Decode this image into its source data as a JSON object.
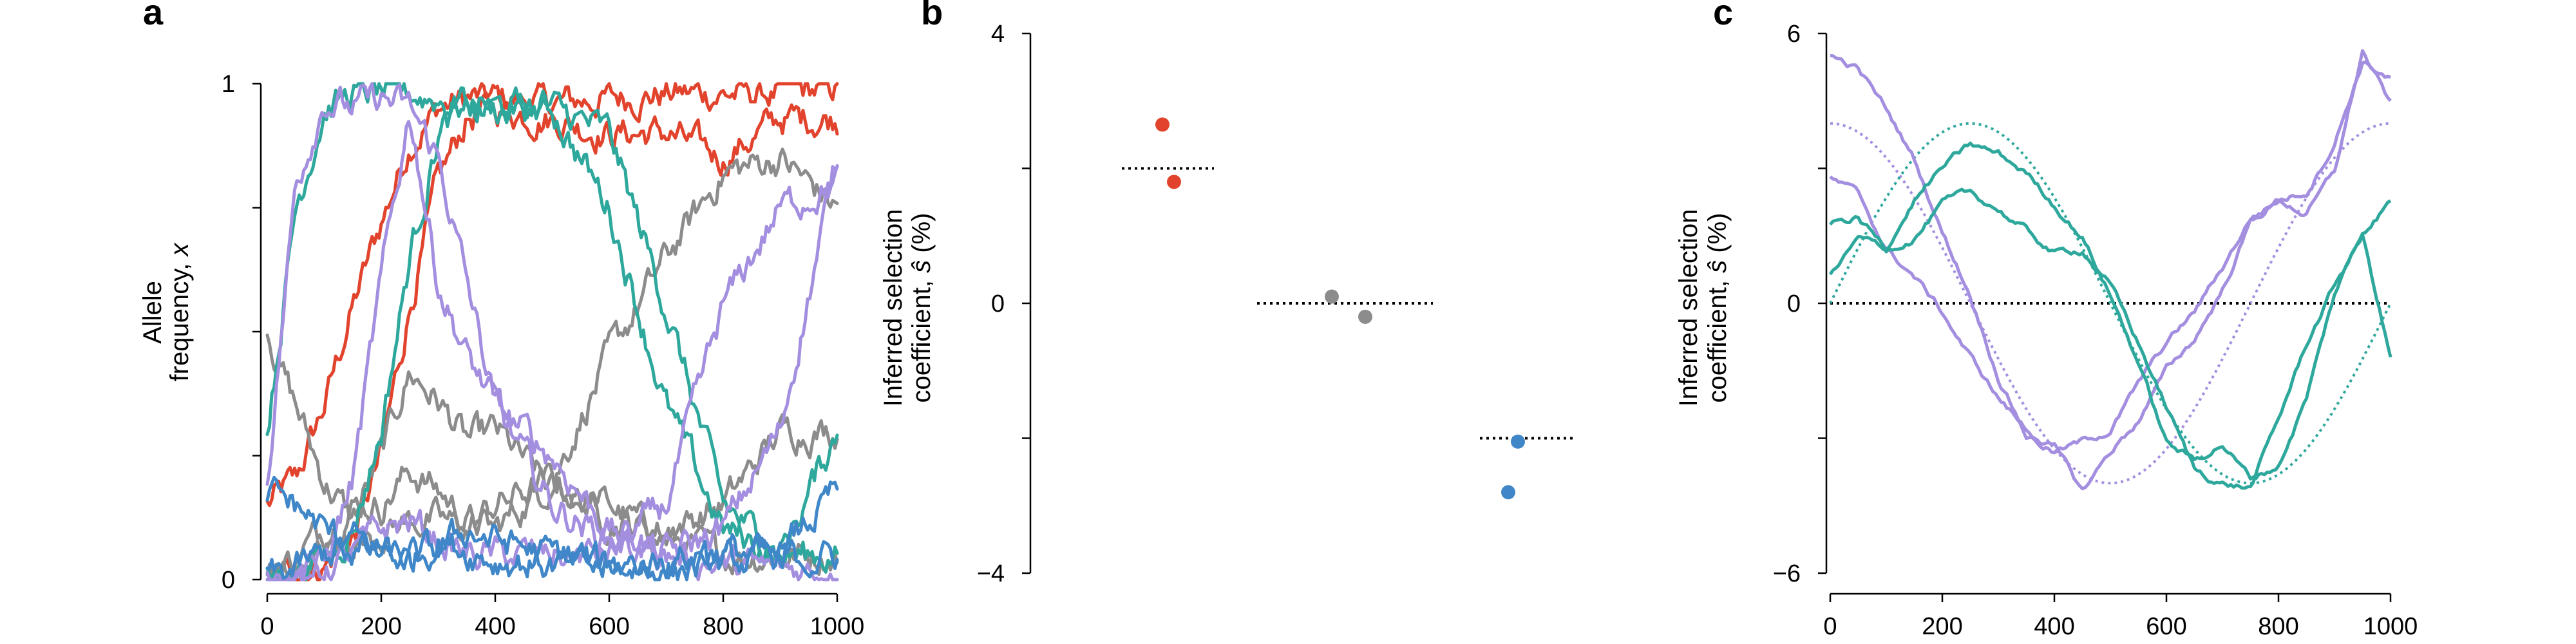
{
  "colors": {
    "red": "#e2432c",
    "gray": "#8c8c8c",
    "blue": "#3f87c8",
    "teal": "#2ea89c",
    "purple": "#a48ee0"
  },
  "chart_data": [
    {
      "panel": "a",
      "type": "line",
      "xlabel": "",
      "ylabel_line1": "Allele",
      "ylabel_line2_text": "frequency, ",
      "ylabel_line2_var": "x",
      "xlim": [
        0,
        1000
      ],
      "ylim": [
        0,
        1
      ],
      "xticks": [
        "0",
        "200",
        "400",
        "600",
        "800",
        "1000"
      ],
      "yticks": [
        "0",
        "1"
      ],
      "series": [
        {
          "color": "red",
          "x": [
            0,
            50,
            100,
            150,
            200,
            250,
            300,
            350,
            400,
            500,
            600,
            700,
            800,
            900,
            1000
          ],
          "values": [
            0.15,
            0.2,
            0.35,
            0.55,
            0.72,
            0.88,
            0.95,
            0.97,
            0.97,
            0.96,
            0.97,
            0.98,
            0.98,
            0.98,
            0.99
          ]
        },
        {
          "color": "red",
          "x": [
            0,
            50,
            100,
            150,
            200,
            250,
            300,
            350,
            400,
            500,
            600,
            700,
            800,
            900,
            1000
          ],
          "values": [
            0.0,
            0.01,
            0.03,
            0.08,
            0.25,
            0.55,
            0.8,
            0.93,
            0.95,
            0.93,
            0.9,
            0.9,
            0.85,
            0.93,
            0.93
          ]
        },
        {
          "color": "gray",
          "x": [
            0,
            50,
            100,
            150,
            200,
            250,
            300,
            350,
            400,
            500,
            600,
            700,
            800,
            900,
            1000
          ],
          "values": [
            0.5,
            0.35,
            0.2,
            0.12,
            0.25,
            0.42,
            0.36,
            0.28,
            0.3,
            0.18,
            0.15,
            0.08,
            0.05,
            0.05,
            0.05
          ]
        },
        {
          "color": "gray",
          "x": [
            0,
            50,
            100,
            150,
            200,
            250,
            300,
            350,
            400,
            500,
            600,
            700,
            800,
            900,
            1000
          ],
          "values": [
            0.0,
            0.05,
            0.1,
            0.15,
            0.15,
            0.22,
            0.18,
            0.12,
            0.1,
            0.2,
            0.45,
            0.65,
            0.82,
            0.85,
            0.75
          ]
        },
        {
          "color": "gray",
          "x": [
            0,
            50,
            100,
            150,
            200,
            250,
            300,
            350,
            400,
            500,
            600,
            700,
            800,
            900,
            1000
          ],
          "values": [
            0.0,
            0.02,
            0.05,
            0.08,
            0.1,
            0.12,
            0.12,
            0.1,
            0.15,
            0.2,
            0.12,
            0.1,
            0.15,
            0.3,
            0.3
          ]
        },
        {
          "color": "teal",
          "x": [
            0,
            50,
            100,
            150,
            200,
            250,
            300,
            350,
            400,
            500,
            600,
            700,
            800,
            900,
            1000
          ],
          "values": [
            0.3,
            0.75,
            0.95,
            0.98,
            0.98,
            0.98,
            0.97,
            0.95,
            0.95,
            0.95,
            0.9,
            0.55,
            0.15,
            0.05,
            0.05
          ]
        },
        {
          "color": "teal",
          "x": [
            0,
            50,
            100,
            150,
            200,
            250,
            300,
            350,
            400,
            500,
            600,
            700,
            800,
            900,
            1000
          ],
          "values": [
            0.0,
            0.02,
            0.05,
            0.1,
            0.3,
            0.65,
            0.9,
            0.96,
            0.95,
            0.95,
            0.75,
            0.35,
            0.1,
            0.05,
            0.3
          ]
        },
        {
          "color": "purple",
          "x": [
            0,
            50,
            100,
            150,
            200,
            250,
            300,
            350,
            400,
            500,
            600,
            700,
            800,
            900,
            1000
          ],
          "values": [
            0.2,
            0.8,
            0.97,
            0.95,
            0.97,
            0.95,
            0.85,
            0.6,
            0.35,
            0.25,
            0.1,
            0.05,
            0.03,
            0.02,
            0.02
          ]
        },
        {
          "color": "purple",
          "x": [
            0,
            50,
            100,
            150,
            200,
            250,
            300,
            350,
            400,
            500,
            600,
            700,
            800,
            900,
            1000
          ],
          "values": [
            0.0,
            0.01,
            0.03,
            0.2,
            0.6,
            0.95,
            0.6,
            0.45,
            0.35,
            0.15,
            0.08,
            0.05,
            0.1,
            0.3,
            0.85
          ]
        },
        {
          "color": "purple",
          "x": [
            0,
            50,
            100,
            150,
            200,
            250,
            300,
            350,
            400,
            500,
            600,
            700,
            800,
            900,
            1000
          ],
          "values": [
            0.0,
            0.01,
            0.02,
            0.05,
            0.1,
            0.12,
            0.08,
            0.05,
            0.05,
            0.05,
            0.05,
            0.15,
            0.55,
            0.75,
            0.8
          ]
        },
        {
          "color": "blue",
          "x": [
            0,
            50,
            100,
            150,
            200,
            250,
            300,
            350,
            400,
            500,
            600,
            700,
            800,
            900,
            1000
          ],
          "values": [
            0.18,
            0.15,
            0.1,
            0.06,
            0.05,
            0.04,
            0.06,
            0.1,
            0.08,
            0.05,
            0.03,
            0.02,
            0.03,
            0.05,
            0.18
          ]
        },
        {
          "color": "blue",
          "x": [
            0,
            50,
            100,
            150,
            200,
            250,
            300,
            350,
            400,
            500,
            600,
            700,
            800,
            900,
            1000
          ],
          "values": [
            0.0,
            0.02,
            0.05,
            0.08,
            0.06,
            0.04,
            0.08,
            0.06,
            0.04,
            0.03,
            0.02,
            0.04,
            0.06,
            0.04,
            0.05
          ]
        }
      ]
    },
    {
      "panel": "b",
      "type": "scatter",
      "ylabel_line1": "Inferred selection",
      "ylabel_line2_text": "coefficient, ",
      "ylabel_line2_var": "ŝ",
      "ylabel_line2_unit": " (%)",
      "ylim": [
        -4,
        4
      ],
      "yticks": [
        "−4",
        "0",
        "4"
      ],
      "groups": [
        {
          "color": "red",
          "true_value": 2,
          "points": [
            2.65,
            1.8
          ]
        },
        {
          "color": "gray",
          "true_value": 0,
          "points": [
            0.1,
            -0.2
          ]
        },
        {
          "color": "blue",
          "true_value": -2,
          "points": [
            -2.05,
            -2.8
          ]
        }
      ]
    },
    {
      "panel": "c",
      "type": "line",
      "ylabel_line1": "Inferred selection",
      "ylabel_line2_text": "coefficient, ",
      "ylabel_line2_var": "ŝ",
      "ylabel_line2_unit": " (%)",
      "xlim": [
        0,
        1000
      ],
      "ylim": [
        -6,
        6
      ],
      "xticks": [
        "0",
        "200",
        "400",
        "600",
        "800",
        "1000"
      ],
      "yticks": [
        "−6",
        "0",
        "6"
      ],
      "true_curves": [
        {
          "color": "purple",
          "amplitude": 4,
          "phase": "cos"
        },
        {
          "color": "teal",
          "amplitude": 4,
          "phase": "sin"
        }
      ],
      "series": [
        {
          "color": "purple",
          "x": [
            0,
            50,
            100,
            150,
            200,
            250,
            300,
            350,
            400,
            450,
            500,
            550,
            600,
            650,
            700,
            750,
            800,
            850,
            900,
            950,
            1000
          ],
          "values": [
            5.5,
            5.2,
            4.3,
            3.2,
            1.6,
            0.2,
            -1.6,
            -2.9,
            -3.3,
            -3.1,
            -2.8,
            -1.8,
            -0.9,
            -0.2,
            0.8,
            1.9,
            2.3,
            2.5,
            3.6,
            5.4,
            5.0
          ]
        },
        {
          "color": "purple",
          "x": [
            0,
            50,
            100,
            150,
            200,
            250,
            300,
            350,
            400,
            450,
            500,
            550,
            600,
            650,
            700,
            750,
            800,
            850,
            900,
            950,
            1000
          ],
          "values": [
            2.8,
            2.4,
            1.2,
            0.6,
            -0.2,
            -1.2,
            -2.1,
            -2.8,
            -3.2,
            -4.2,
            -3.3,
            -2.6,
            -1.5,
            -0.8,
            0.3,
            1.8,
            2.3,
            2.0,
            2.9,
            5.6,
            4.4
          ]
        },
        {
          "color": "teal",
          "x": [
            0,
            50,
            100,
            150,
            200,
            250,
            300,
            350,
            400,
            450,
            500,
            550,
            600,
            650,
            700,
            750,
            800,
            850,
            900,
            950,
            1000
          ],
          "values": [
            1.8,
            1.9,
            1.2,
            1.5,
            2.2,
            2.4,
            2.1,
            1.6,
            1.1,
            1.2,
            0.4,
            -0.9,
            -2.3,
            -3.7,
            -4.0,
            -4.1,
            -2.6,
            -0.9,
            0.4,
            1.5,
            -1.2
          ]
        },
        {
          "color": "teal",
          "x": [
            0,
            50,
            100,
            150,
            200,
            250,
            300,
            350,
            400,
            450,
            500,
            550,
            600,
            650,
            700,
            750,
            800,
            850,
            900,
            950,
            1000
          ],
          "values": [
            0.6,
            1.4,
            1.2,
            2.3,
            3.0,
            3.5,
            3.3,
            2.9,
            2.2,
            1.5,
            0.2,
            -1.3,
            -3.1,
            -3.5,
            -3.1,
            -3.9,
            -3.6,
            -2.1,
            0.2,
            1.6,
            2.3
          ]
        }
      ]
    }
  ]
}
